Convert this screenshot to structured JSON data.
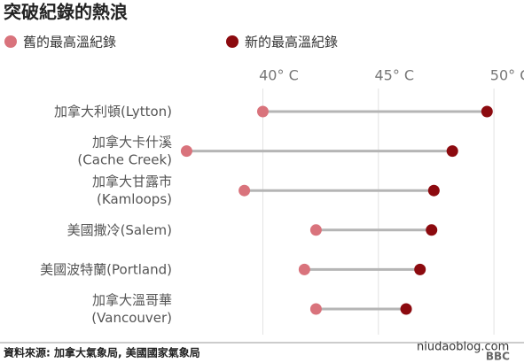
{
  "chart_data": {
    "type": "dumbbell",
    "title": "突破紀錄的熱浪",
    "categories": [
      "加拿大利頓(Lytton)",
      "加拿大卡什溪\n(Cache Creek)",
      "加拿大甘露市\n(Kamloops)",
      "美國撒冷(Salem)",
      "美國波特蘭(Portland)",
      "加拿大溫哥華\n(Vancouver)"
    ],
    "series": [
      {
        "name": "舊的最高溫紀錄",
        "color": "#d9737c",
        "values": [
          40.0,
          36.7,
          39.2,
          42.3,
          41.8,
          42.3
        ]
      },
      {
        "name": "新的最高溫紀錄",
        "color": "#8c0a0f",
        "values": [
          49.7,
          48.2,
          47.4,
          47.3,
          46.8,
          46.2
        ]
      }
    ],
    "xlim": [
      36.3,
      51.3
    ],
    "xticks": [
      {
        "value": 40,
        "label": "40° C"
      },
      {
        "value": 45,
        "label": "45° C"
      },
      {
        "value": 50,
        "label": "50° C"
      }
    ],
    "grid": true,
    "source": "資料來源: 加拿大氣象局, 美國國家氣象局",
    "watermark": "niudaoblog.com",
    "logo": "BBC"
  }
}
